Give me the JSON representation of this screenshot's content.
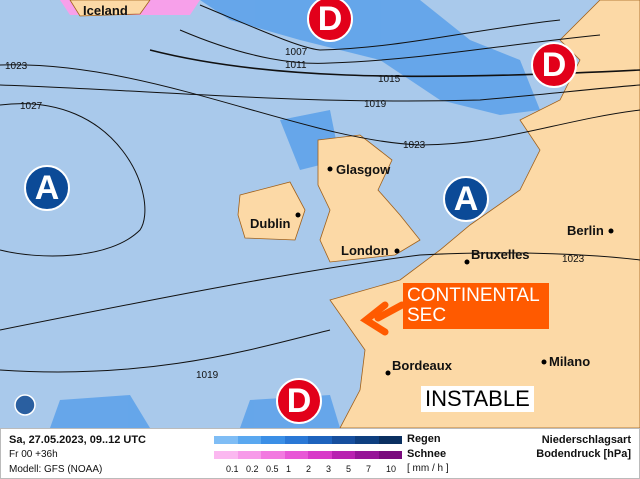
{
  "map": {
    "cities": [
      "Iceland",
      "Glasgow",
      "Dublin",
      "London",
      "Bruxelles",
      "Berlin",
      "Bordeaux",
      "Milano"
    ],
    "isobar_labels": [
      "1023",
      "1027",
      "1007",
      "1011",
      "1015",
      "1019",
      "1023",
      "1023",
      "1019"
    ],
    "high_label": "A",
    "low_label": "D",
    "annotations": {
      "continental": "CONTINENTAL SEC",
      "instable": "INSTABLE"
    },
    "colors": {
      "sea": "#a9c9eb",
      "land": "#fcd9a6",
      "high": "#0b4a97",
      "low": "#e2001a",
      "annotation": "#ff5a00"
    }
  },
  "legend": {
    "date": "Sa, 27.05.2023, 09..12 UTC",
    "run": "Fr 00 +36h",
    "model": "Modell: GFS (NOAA)",
    "rain_label": "Regen",
    "snow_label": "Schnee",
    "unit": "[ mm / h ]",
    "ticks": [
      "0.1",
      "0.2",
      "0.5",
      "1",
      "2",
      "3",
      "5",
      "7",
      "10"
    ],
    "title1": "Niederschlagsart",
    "title2": "Bodendruck [hPa]",
    "rain_colors": [
      "#7fbdf5",
      "#5aa8f0",
      "#3b8fe6",
      "#2a78d6",
      "#1d63bd",
      "#164f9e",
      "#0e3f80",
      "#0a2f60"
    ],
    "snow_colors": [
      "#fbb8f0",
      "#f79ae9",
      "#f27ae0",
      "#e857d6",
      "#d83ac8",
      "#b822b0",
      "#961497",
      "#7a0a7d"
    ]
  }
}
